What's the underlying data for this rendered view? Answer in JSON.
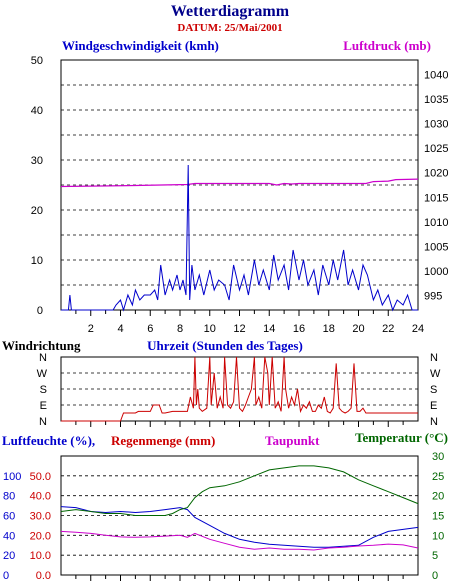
{
  "header": {
    "title": "Wetterdiagramm",
    "subtitle": "DATUM: 25/Mai/2001"
  },
  "colors": {
    "wind": "#0000cc",
    "pressure": "#cc00cc",
    "direction": "#cc0000",
    "humidity": "#0000cc",
    "rain": "#cc0000",
    "dewpoint": "#cc00cc",
    "temperature": "#006600",
    "grid": "#000000"
  },
  "chart_data": [
    {
      "id": "wind_pressure",
      "type": "line",
      "title": "",
      "left_label": "Windgeschwindigkeit (kmh)",
      "right_label": "Luftdruck (mb)",
      "x_ticks": [
        "2",
        "4",
        "6",
        "8",
        "10",
        "12",
        "14",
        "16",
        "18",
        "20",
        "22",
        "24"
      ],
      "y_left_ticks": [
        "0",
        "10",
        "20",
        "30",
        "40",
        "50"
      ],
      "y_right_ticks": [
        "995",
        "1000",
        "1005",
        "1010",
        "1015",
        "1020",
        "1025",
        "1030",
        "1035",
        "1040"
      ],
      "xlim": [
        0,
        24
      ],
      "ylim_left": [
        0,
        50
      ],
      "ylim_right": [
        992,
        1043
      ],
      "grid": true,
      "series": [
        {
          "key": "wind",
          "axis": "left",
          "x": [
            0,
            0.5,
            0.6,
            0.7,
            1,
            2,
            3,
            3.5,
            3.7,
            4,
            4.2,
            4.5,
            4.8,
            5,
            5.3,
            5.6,
            6,
            6.3,
            6.5,
            6.7,
            7,
            7.3,
            7.5,
            7.8,
            8,
            8.2,
            8.4,
            8.55,
            8.65,
            8.8,
            9,
            9.3,
            9.6,
            10,
            10.3,
            10.6,
            11,
            11.3,
            11.6,
            12,
            12.3,
            12.6,
            13,
            13.3,
            13.6,
            14,
            14.3,
            14.6,
            15,
            15.3,
            15.6,
            16,
            16.3,
            16.6,
            17,
            17.3,
            17.6,
            18,
            18.3,
            18.6,
            19,
            19.3,
            19.6,
            20,
            20.3,
            20.6,
            21,
            21.3,
            21.6,
            22,
            22.3,
            22.6,
            23,
            23.3,
            23.6,
            24
          ],
          "values": [
            0,
            0,
            3,
            0,
            0,
            0,
            0,
            0,
            1,
            2,
            0,
            3,
            1,
            4,
            2,
            3,
            3,
            4,
            2,
            9,
            3,
            6,
            4,
            7,
            4,
            6,
            3,
            29,
            2,
            9,
            4,
            7,
            3,
            8,
            4,
            6,
            5,
            2,
            9,
            4,
            7,
            3,
            10,
            5,
            8,
            4,
            11,
            6,
            9,
            4,
            12,
            6,
            10,
            5,
            8,
            3,
            9,
            5,
            10,
            6,
            12,
            5,
            8,
            4,
            9,
            7,
            2,
            4,
            1,
            3,
            0,
            2,
            1,
            3,
            0,
            0
          ]
        },
        {
          "key": "pressure",
          "axis": "right",
          "x": [
            0,
            5,
            8.5,
            9,
            14,
            14.5,
            15,
            15.5,
            16,
            16.5,
            17,
            20.5,
            21,
            22,
            22.5,
            24
          ],
          "values": [
            1017.2,
            1017.4,
            1017.6,
            1017.8,
            1017.8,
            1017.5,
            1017.8,
            1017.7,
            1017.8,
            1017.8,
            1017.8,
            1017.8,
            1018.2,
            1018.3,
            1018.6,
            1018.7
          ]
        }
      ]
    },
    {
      "id": "wind_direction",
      "type": "line",
      "title": "",
      "left_label": "Windrichtung",
      "x_title": "Uhrzeit (Stunden des Tages)",
      "categories": [
        "N",
        "E",
        "S",
        "W",
        "N"
      ],
      "y_left_ticks": [
        "N",
        "W",
        "S",
        "E",
        "N"
      ],
      "y_right_ticks": [
        "N",
        "W",
        "S",
        "E",
        "N"
      ],
      "xlim": [
        0,
        24
      ],
      "ylim": [
        0,
        4
      ],
      "grid": true,
      "series": [
        {
          "key": "direction",
          "axis": "left",
          "x": [
            0,
            4,
            4.2,
            5,
            5.2,
            6,
            6.2,
            6.6,
            6.8,
            7,
            7.5,
            8.5,
            8.7,
            8.9,
            9.0,
            9.1,
            9.2,
            9.3,
            9.5,
            9.8,
            10.0,
            10.1,
            10.3,
            10.5,
            10.7,
            10.9,
            11.0,
            11.2,
            11.4,
            11.6,
            11.8,
            12,
            12.2,
            12.4,
            12.6,
            12.8,
            13.0,
            13.1,
            13.3,
            13.5,
            13.7,
            13.9,
            14.0,
            14.2,
            14.4,
            14.6,
            14.8,
            15.0,
            15.1,
            15.3,
            15.5,
            15.7,
            15.9,
            16.1,
            16.3,
            16.5,
            16.7,
            16.9,
            17.1,
            17.3,
            17.5,
            17.7,
            17.9,
            18.1,
            18.3,
            18.5,
            18.7,
            18.9,
            19.1,
            19.3,
            19.5,
            19.7,
            19.9,
            20.1,
            20.3,
            20.5,
            21,
            24
          ],
          "values": [
            0,
            0,
            0.5,
            0.5,
            0.6,
            0.6,
            1,
            1,
            0.5,
            0.5,
            0.6,
            0.6,
            1.5,
            0.8,
            4,
            1,
            2,
            0.8,
            0.6,
            0.8,
            4,
            1,
            3,
            0.8,
            1.5,
            0.8,
            4,
            1,
            0.8,
            1.2,
            4,
            0.8,
            0.6,
            1,
            1.5,
            2,
            4,
            1,
            1.5,
            0.8,
            4,
            3,
            1,
            4,
            0.8,
            1.2,
            0.6,
            4,
            2,
            0.8,
            1.5,
            1,
            2,
            0.6,
            1,
            0.8,
            1.2,
            0.6,
            0.6,
            1,
            0.8,
            1.5,
            0.6,
            0.5,
            0.8,
            3.6,
            0.8,
            0.6,
            0.5,
            0.6,
            0.8,
            3.6,
            0.6,
            0.6,
            0.8,
            0.5,
            0.5,
            0.5
          ]
        }
      ]
    },
    {
      "id": "humidity_temperature",
      "type": "line",
      "title": "",
      "left_label_1": "Luftfeuchte (%),",
      "left_label_2": "Regenmenge (mm)",
      "mid_label": "Taupunkt",
      "right_label": "Temperatur (°C)",
      "y_left_ticks_humidity": [
        "0",
        "20",
        "40",
        "60",
        "80",
        "100"
      ],
      "y_left_ticks_rain": [
        "0.0",
        "10.0",
        "20.0",
        "30.0",
        "40.0",
        "50.0"
      ],
      "y_right_ticks": [
        "0",
        "5",
        "10",
        "15",
        "20",
        "25",
        "30"
      ],
      "xlim": [
        0,
        24
      ],
      "ylim_left": [
        0,
        60
      ],
      "ylim_right": [
        0,
        30
      ],
      "grid": true,
      "series": [
        {
          "key": "humidity",
          "axis": "left",
          "x": [
            0,
            1,
            2,
            3,
            4,
            5,
            6,
            7,
            8,
            8.5,
            9,
            10,
            11,
            12,
            13,
            14,
            15,
            16,
            17,
            18,
            19,
            20,
            21,
            22,
            23,
            24
          ],
          "values": [
            34.5,
            34.0,
            32.0,
            31.5,
            32.0,
            31.5,
            32.0,
            33.0,
            34.0,
            33.0,
            29.0,
            25.0,
            21.0,
            18.0,
            16.5,
            15.5,
            15.0,
            14.5,
            14.0,
            14.0,
            14.5,
            15.0,
            19.0,
            22.0,
            23.0,
            24.0
          ]
        },
        {
          "key": "dewpoint",
          "axis": "right",
          "x": [
            0,
            1,
            2,
            3,
            4,
            5,
            6,
            7,
            8,
            8.5,
            9,
            10,
            11,
            12,
            13,
            14,
            15,
            16,
            17,
            18,
            19,
            20,
            21,
            22,
            23,
            24
          ],
          "values": [
            11.0,
            10.8,
            10.5,
            10.0,
            9.6,
            9.5,
            9.6,
            9.8,
            10.0,
            9.5,
            10.5,
            9.0,
            8.0,
            7.0,
            6.5,
            6.8,
            6.5,
            6.5,
            6.3,
            6.8,
            7.0,
            7.3,
            7.5,
            7.8,
            7.6,
            6.8
          ]
        },
        {
          "key": "temperature",
          "axis": "right",
          "x": [
            0,
            1,
            2,
            3,
            4,
            5,
            6,
            7,
            7.5,
            8,
            8.5,
            9,
            9.5,
            10,
            11,
            12,
            13,
            14,
            15,
            16,
            17,
            18,
            19,
            20,
            21,
            22,
            23,
            24
          ],
          "values": [
            16.0,
            16.5,
            16.0,
            15.5,
            15.5,
            15.0,
            15.0,
            15.0,
            15.5,
            16.5,
            17.0,
            19.5,
            21.0,
            22.0,
            22.5,
            23.5,
            25.0,
            26.5,
            27.0,
            27.5,
            27.5,
            27.0,
            26.0,
            24.0,
            22.5,
            21.0,
            19.5,
            18.0
          ]
        }
      ]
    }
  ]
}
